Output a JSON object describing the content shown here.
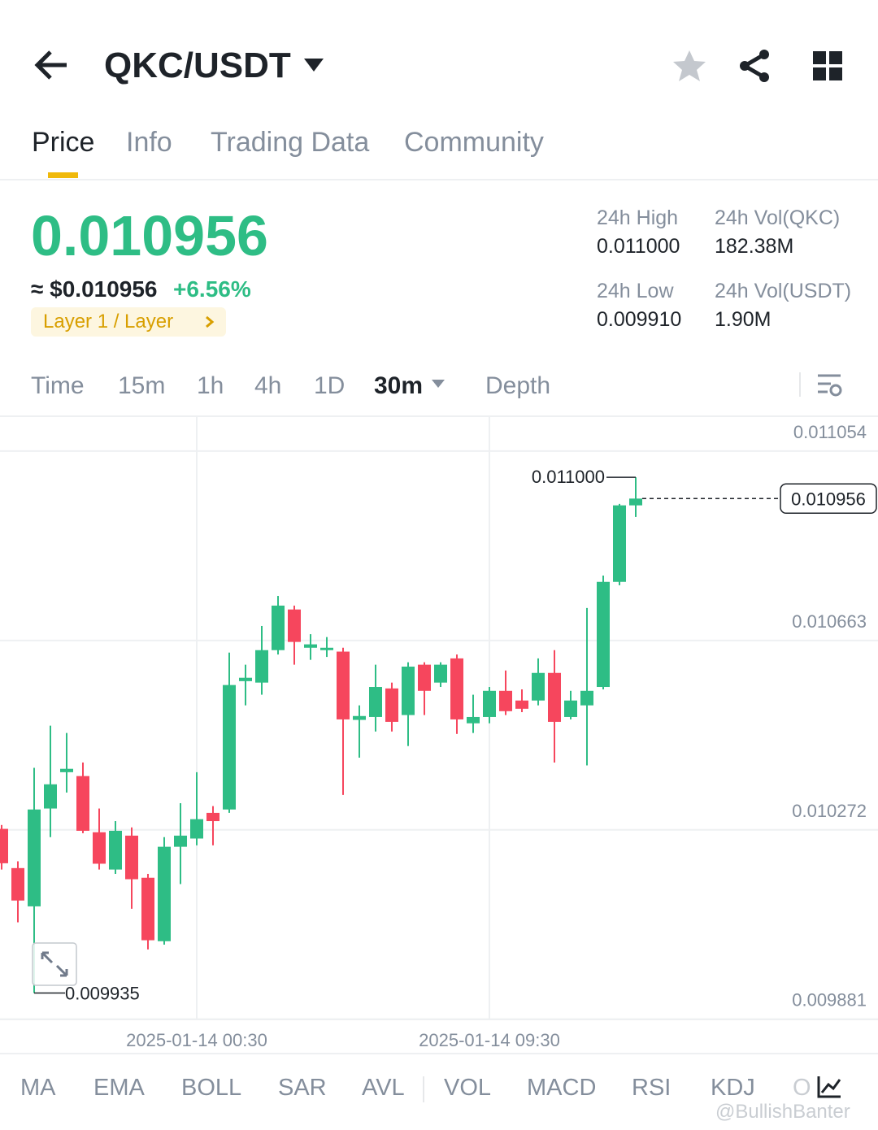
{
  "header": {
    "pair": "QKC/USDT"
  },
  "tabs": [
    "Price",
    "Info",
    "Trading Data",
    "Community"
  ],
  "price": {
    "last": "0.010956",
    "approx": "≈ $0.010956",
    "change": "+6.56%",
    "tag": "Layer 1 / Layer"
  },
  "stats": [
    {
      "label": "24h High",
      "value": "0.011000"
    },
    {
      "label": "24h Vol(QKC)",
      "value": "182.38M"
    },
    {
      "label": "24h Low",
      "value": "0.009910"
    },
    {
      "label": "24h Vol(USDT)",
      "value": "1.90M"
    }
  ],
  "intervals": [
    "Time",
    "15m",
    "1h",
    "4h",
    "1D",
    "30m",
    "Depth"
  ],
  "chart_data": {
    "type": "candlestick",
    "up_color": "#2ebd85",
    "down_color": "#f6465d",
    "categories": [
      null,
      null,
      null,
      null,
      null,
      null,
      null,
      null,
      null,
      null,
      null,
      null,
      "2025-01-14 00:30",
      null,
      null,
      null,
      null,
      null,
      null,
      null,
      null,
      null,
      null,
      null,
      null,
      null,
      null,
      null,
      null,
      null,
      "2025-01-14 09:30",
      null,
      null,
      null,
      null,
      null,
      null,
      null,
      null,
      null
    ],
    "open": [
      0.010274,
      0.010193,
      0.010114,
      0.010316,
      0.010391,
      0.010383,
      0.010267,
      0.01019,
      0.01026,
      0.010173,
      0.010042,
      0.010237,
      0.010254,
      0.010307,
      0.010314,
      0.010579,
      0.010576,
      0.010643,
      0.010727,
      0.010648,
      0.010643,
      0.01064,
      0.010499,
      0.010505,
      0.010564,
      0.010509,
      0.010613,
      0.010576,
      0.010626,
      0.010492,
      0.010505,
      0.010559,
      0.010539,
      0.010539,
      0.010596,
      0.010505,
      0.010529,
      0.010567,
      0.010784,
      0.010942
    ],
    "high": [
      0.010282,
      0.010207,
      0.0104,
      0.010487,
      0.010472,
      0.010411,
      0.010316,
      0.01029,
      0.010277,
      0.010181,
      0.010257,
      0.010327,
      0.010391,
      0.010321,
      0.010638,
      0.010613,
      0.010693,
      0.010755,
      0.010735,
      0.010676,
      0.01067,
      0.010648,
      0.010529,
      0.010613,
      0.010576,
      0.010618,
      0.010618,
      0.010618,
      0.010634,
      0.010551,
      0.010567,
      0.010601,
      0.010562,
      0.010626,
      0.010643,
      0.010559,
      0.01073,
      0.010797,
      0.010945,
      0.011
    ],
    "low": [
      0.01019,
      0.010081,
      0.009935,
      0.010257,
      0.010349,
      0.010265,
      0.01019,
      0.010181,
      0.010109,
      0.010025,
      0.010035,
      0.01016,
      0.01024,
      0.01024,
      0.010307,
      0.010529,
      0.010551,
      0.010634,
      0.010613,
      0.010623,
      0.010629,
      0.010344,
      0.010421,
      0.010475,
      0.010475,
      0.010445,
      0.010509,
      0.010567,
      0.01047,
      0.010472,
      0.010492,
      0.010509,
      0.010515,
      0.010529,
      0.010411,
      0.0105,
      0.010405,
      0.010562,
      0.010777,
      0.010918
    ],
    "close": [
      0.010203,
      0.010126,
      0.010314,
      0.010366,
      0.010398,
      0.01027,
      0.010202,
      0.01027,
      0.01017,
      0.010044,
      0.010237,
      0.01026,
      0.010294,
      0.01029,
      0.010571,
      0.010586,
      0.010643,
      0.010735,
      0.01066,
      0.010655,
      0.010648,
      0.0105,
      0.010507,
      0.010567,
      0.010495,
      0.010609,
      0.010559,
      0.010613,
      0.0105,
      0.010505,
      0.010559,
      0.010517,
      0.010522,
      0.010596,
      0.010495,
      0.010539,
      0.010559,
      0.010784,
      0.010942,
      0.010956
    ],
    "high_label": "0.011000",
    "low_label": "0.009935",
    "last_label": "0.010956",
    "ylim": [
      0.009862,
      0.011121
    ],
    "yticks": [
      0.011054,
      0.010663,
      0.010272,
      0.009881
    ],
    "grid": true
  },
  "indicators": [
    "MA",
    "EMA",
    "BOLL",
    "SAR",
    "AVL",
    "VOL",
    "MACD",
    "RSI",
    "KDJ",
    "O"
  ],
  "watermark": "@BullishBanter"
}
